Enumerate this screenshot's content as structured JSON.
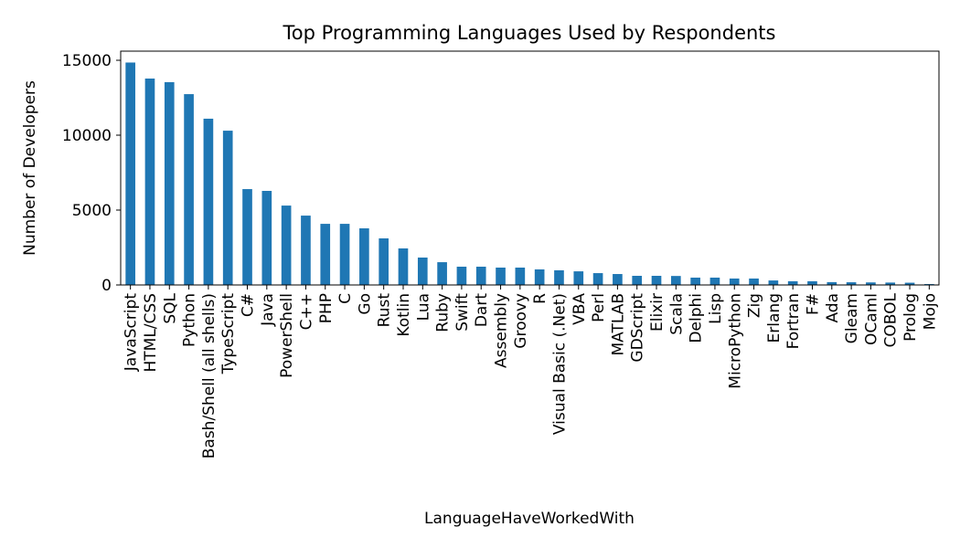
{
  "chart_data": {
    "type": "bar",
    "title": "Top Programming Languages Used by Respondents",
    "x_label": "LanguageHaveWorkedWith",
    "y_label": "Number of Developers",
    "categories": [
      "JavaScript",
      "HTML/CSS",
      "SQL",
      "Python",
      "Bash/Shell (all shells)",
      "TypeScript",
      "C#",
      "Java",
      "PowerShell",
      "C++",
      "PHP",
      "C",
      "Go",
      "Rust",
      "Kotlin",
      "Lua",
      "Ruby",
      "Swift",
      "Dart",
      "Assembly",
      "Groovy",
      "R",
      "Visual Basic (.Net)",
      "VBA",
      "Perl",
      "MATLAB",
      "GDScript",
      "Elixir",
      "Scala",
      "Delphi",
      "Lisp",
      "MicroPython",
      "Zig",
      "Erlang",
      "Fortran",
      "F#",
      "Ada",
      "Gleam",
      "OCaml",
      "COBOL",
      "Prolog",
      "Mojo"
    ],
    "values": [
      14850,
      13780,
      13540,
      12740,
      11100,
      10300,
      6400,
      6280,
      5300,
      4630,
      4080,
      4080,
      3780,
      3110,
      2440,
      1830,
      1520,
      1220,
      1220,
      1160,
      1160,
      1040,
      980,
      910,
      790,
      730,
      610,
      610,
      600,
      490,
      490,
      430,
      430,
      300,
      250,
      250,
      190,
      180,
      170,
      160,
      150,
      60
    ],
    "color": "#1f77b4",
    "ylim": [
      0,
      15610
    ],
    "yticks": [
      0,
      5000,
      10000,
      15000
    ],
    "grid": false
  }
}
